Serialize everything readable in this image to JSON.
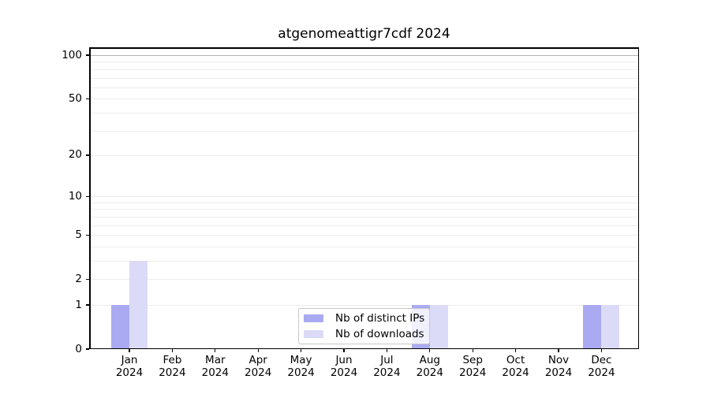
{
  "title": "atgenomeattigr7cdf 2024",
  "chart_data": {
    "type": "bar",
    "title": "atgenomeattigr7cdf 2024",
    "categories": [
      "Jan",
      "Feb",
      "Mar",
      "Apr",
      "May",
      "Jun",
      "Jul",
      "Aug",
      "Sep",
      "Oct",
      "Nov",
      "Dec"
    ],
    "year": "2024",
    "series": [
      {
        "name": "Nb of distinct IPs",
        "color": "#aaaaf2",
        "values": [
          1,
          0,
          0,
          0,
          0,
          0,
          0,
          1,
          0,
          0,
          0,
          1
        ]
      },
      {
        "name": "Nb of downloads",
        "color": "#dbdbf7",
        "values": [
          3,
          0,
          0,
          0,
          0,
          0,
          0,
          1,
          0,
          0,
          0,
          1
        ]
      }
    ],
    "xlabel": "",
    "ylabel": "",
    "y_axis": {
      "scale": "log10(1+v)",
      "tick_values": [
        0,
        1,
        2,
        5,
        10,
        20,
        50,
        100
      ],
      "tick_labels": [
        "0",
        "1",
        "2",
        "5",
        "10",
        "20",
        "50",
        "100"
      ],
      "gridline_values": [
        1,
        2,
        3,
        4,
        5,
        6,
        7,
        8,
        9,
        10,
        20,
        30,
        40,
        50,
        60,
        70,
        80,
        90,
        100
      ],
      "emphasized_gridline": 100,
      "ylim": [
        0,
        113
      ]
    },
    "grid": true,
    "legend_position": "bottom-center"
  },
  "colors": {
    "background": "#ffffff",
    "axis": "#000000",
    "gridline_minor": "#ececec",
    "gridline_major": "#b3b3b3",
    "legend_border": "#c9c9c9"
  }
}
